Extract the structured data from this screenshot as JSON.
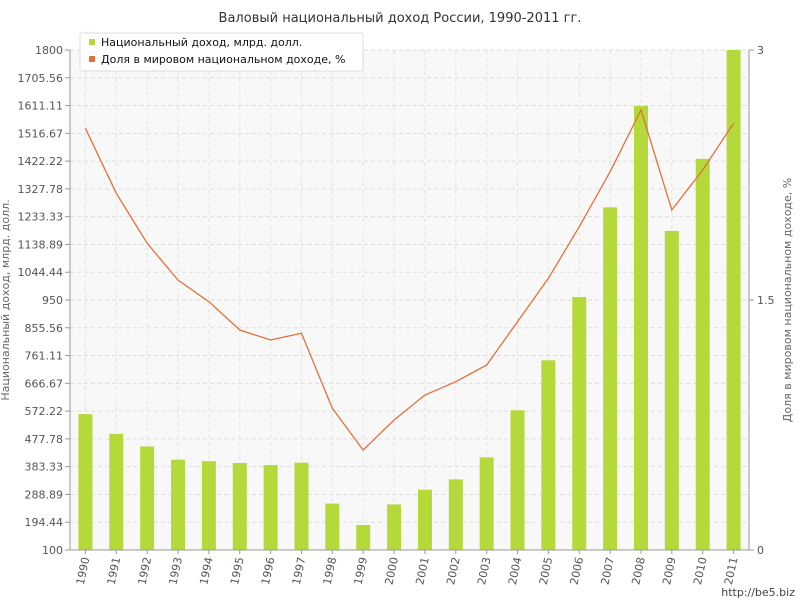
{
  "chart_data": {
    "type": "bar",
    "title": "Валовый национальный доход России, 1990-2011 гг.",
    "ylabel": "Национальный доход, млрд. долл.",
    "y2label": "Доля в мировом национальном доходе, %",
    "ylim": [
      100,
      1800
    ],
    "y2lim": [
      0,
      3
    ],
    "yticks": [
      "100",
      "194.44",
      "288.89",
      "383.33",
      "477.78",
      "572.22",
      "666.67",
      "761.11",
      "855.56",
      "950",
      "1044.44",
      "1138.89",
      "1233.33",
      "1327.78",
      "1422.22",
      "1516.67",
      "1611.11",
      "1705.56",
      "1800"
    ],
    "y2ticks": [
      "0",
      "1.5",
      "3"
    ],
    "grid": true,
    "legend": "top-left",
    "categories": [
      "1990",
      "1991",
      "1992",
      "1993",
      "1994",
      "1995",
      "1996",
      "1997",
      "1998",
      "1999",
      "2000",
      "2001",
      "2002",
      "2003",
      "2004",
      "2005",
      "2006",
      "2007",
      "2008",
      "2009",
      "2010",
      "2011"
    ],
    "series": [
      {
        "name": "Национальный доход, млрд. долл.",
        "type": "bar",
        "axis": "left",
        "color": "#b5d93a",
        "values": [
          562,
          495,
          452,
          407,
          402,
          396,
          389,
          397,
          258,
          185,
          255,
          305,
          340,
          415,
          575,
          745,
          960,
          1265,
          1610,
          1185,
          1430,
          1800
        ]
      },
      {
        "name": "Доля в мировом национальном доходе, %",
        "type": "line",
        "axis": "right",
        "color": "#e2703e",
        "values": [
          2.53,
          2.14,
          1.84,
          1.62,
          1.49,
          1.32,
          1.26,
          1.3,
          0.85,
          0.6,
          0.78,
          0.93,
          1.01,
          1.11,
          1.37,
          1.63,
          1.94,
          2.27,
          2.64,
          2.04,
          2.28,
          2.56
        ]
      }
    ]
  },
  "watermark": "http://be5.biz"
}
